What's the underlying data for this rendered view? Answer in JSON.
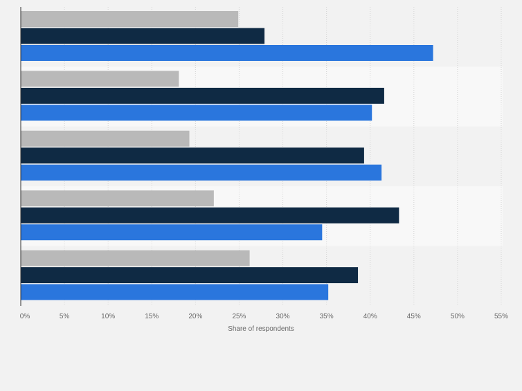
{
  "chart_data": {
    "type": "bar",
    "orientation": "horizontal",
    "title": "",
    "xlabel": "Share of respondents",
    "ylabel": "",
    "xlim": [
      0,
      55
    ],
    "ticks": [
      0,
      5,
      10,
      15,
      20,
      25,
      30,
      35,
      40,
      45,
      50,
      55
    ],
    "tick_labels": [
      "0%",
      "5%",
      "10%",
      "15%",
      "20%",
      "25%",
      "30%",
      "35%",
      "40%",
      "45%",
      "50%",
      "55%"
    ],
    "categories": [
      "",
      "",
      "",
      "",
      ""
    ],
    "series": [
      {
        "name": "",
        "color": "#b9b9b9",
        "values": [
          24.9,
          18.1,
          19.3,
          22.1,
          26.2
        ]
      },
      {
        "name": "",
        "color": "#0f2a44",
        "values": [
          27.9,
          41.6,
          39.3,
          43.3,
          38.6
        ]
      },
      {
        "name": "",
        "color": "#2a76dd",
        "values": [
          47.2,
          40.2,
          41.3,
          34.5,
          35.2
        ]
      }
    ],
    "grid": true,
    "legend": "none"
  }
}
